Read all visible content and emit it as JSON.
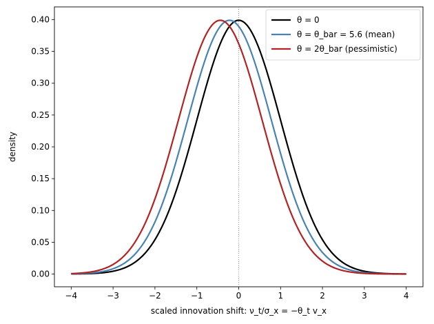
{
  "chart_data": {
    "type": "line",
    "title": "",
    "xlabel": "scaled innovation shift: ν_t/σ_x = −θ_t v_x",
    "ylabel": "density",
    "xlim": [
      -4.4,
      4.4
    ],
    "ylim": [
      -0.02,
      0.42
    ],
    "x_ticks": [
      -4,
      -3,
      -2,
      -1,
      0,
      1,
      2,
      3,
      4
    ],
    "x_tick_labels": [
      "−4",
      "−3",
      "−2",
      "−1",
      "0",
      "1",
      "2",
      "3",
      "4"
    ],
    "y_ticks": [
      0.0,
      0.05,
      0.1,
      0.15,
      0.2,
      0.25,
      0.3,
      0.35,
      0.4
    ],
    "y_tick_labels": [
      "0.00",
      "0.05",
      "0.10",
      "0.15",
      "0.20",
      "0.25",
      "0.30",
      "0.35",
      "0.40"
    ],
    "reference_line": {
      "x": 0,
      "style": "dotted",
      "color": "#808080"
    },
    "grid": false,
    "legend_position": "top-right",
    "x_range": [
      -4,
      4
    ],
    "series": [
      {
        "name": "θ = 0",
        "distribution": "normal",
        "mean": 0.0,
        "sd": 1.0,
        "color": "#000000"
      },
      {
        "name": "θ = θ_bar = 5.6  (mean)",
        "distribution": "normal",
        "mean": -0.22,
        "sd": 1.0,
        "color": "#4682b4"
      },
      {
        "name": "θ = 2θ_bar  (pessimistic)",
        "distribution": "normal",
        "mean": -0.44,
        "sd": 1.0,
        "color": "#b22222"
      }
    ]
  }
}
